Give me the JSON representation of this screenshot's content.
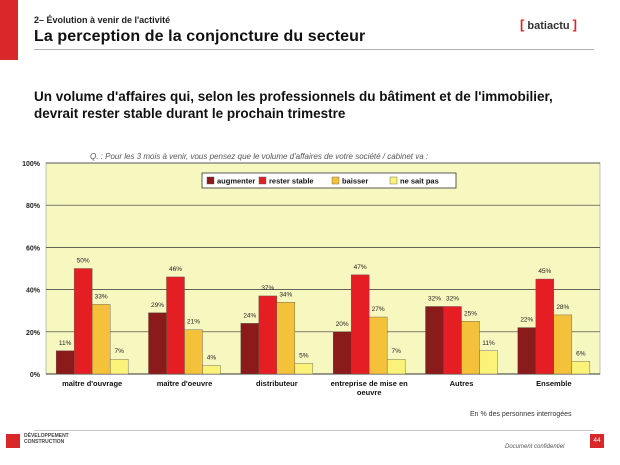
{
  "header": {
    "section_label": "2– Évolution à venir de l'activité",
    "title": "La perception de la conjoncture du secteur",
    "logo_text": "batiactu"
  },
  "headline": "Un volume d'affaires qui, selon les professionnels du bâtiment et de l'immobilier, devrait rester stable durant le prochain trimestre",
  "question": "Q. : Pour les 3 mois à venir, vous pensez que le volume d'affaires de votre société / cabinet va :",
  "footnote": "En % des personnes interrogées",
  "footer": {
    "logo_text": "DÉVELOPPEMENT CONSTRUCTION",
    "confidential": "Document confidentiel",
    "page_number": "44"
  },
  "colors": {
    "accent": "#d9272a",
    "plot_background": "#f7f7c0"
  },
  "chart_data": {
    "type": "bar",
    "categories": [
      "maître d'ouvrage",
      "maître d'oeuvre",
      "distributeur",
      "entreprise de mise en oeuvre",
      "Autres",
      "Ensemble"
    ],
    "series": [
      {
        "name": "augmenter",
        "color": "#8b1a1a",
        "values": [
          11,
          29,
          24,
          20,
          32,
          22
        ],
        "labels": [
          "11%",
          "29%",
          "24%",
          "20%",
          "32%",
          "22%"
        ]
      },
      {
        "name": "rester stable",
        "color": "#e51e24",
        "values": [
          50,
          46,
          37,
          47,
          32,
          45
        ],
        "labels": [
          "50%",
          "46%",
          "37%",
          "47%",
          "32%",
          "45%"
        ]
      },
      {
        "name": "baisser",
        "color": "#f4c23a",
        "values": [
          33,
          21,
          34,
          27,
          25,
          28
        ],
        "labels": [
          "33%",
          "21%",
          "34%",
          "27%",
          "25%",
          "28%"
        ]
      },
      {
        "name": "ne sait pas",
        "color": "#fbf27a",
        "values": [
          7,
          4,
          5,
          7,
          11,
          6
        ],
        "labels": [
          "7%",
          "4%",
          "5%",
          "7%",
          "11%",
          "6%"
        ]
      }
    ],
    "y_ticks": [
      "0%",
      "20%",
      "40%",
      "60%",
      "80%",
      "100%"
    ],
    "ylim": [
      0,
      100
    ],
    "grid": true,
    "legend_position": "top-center"
  }
}
